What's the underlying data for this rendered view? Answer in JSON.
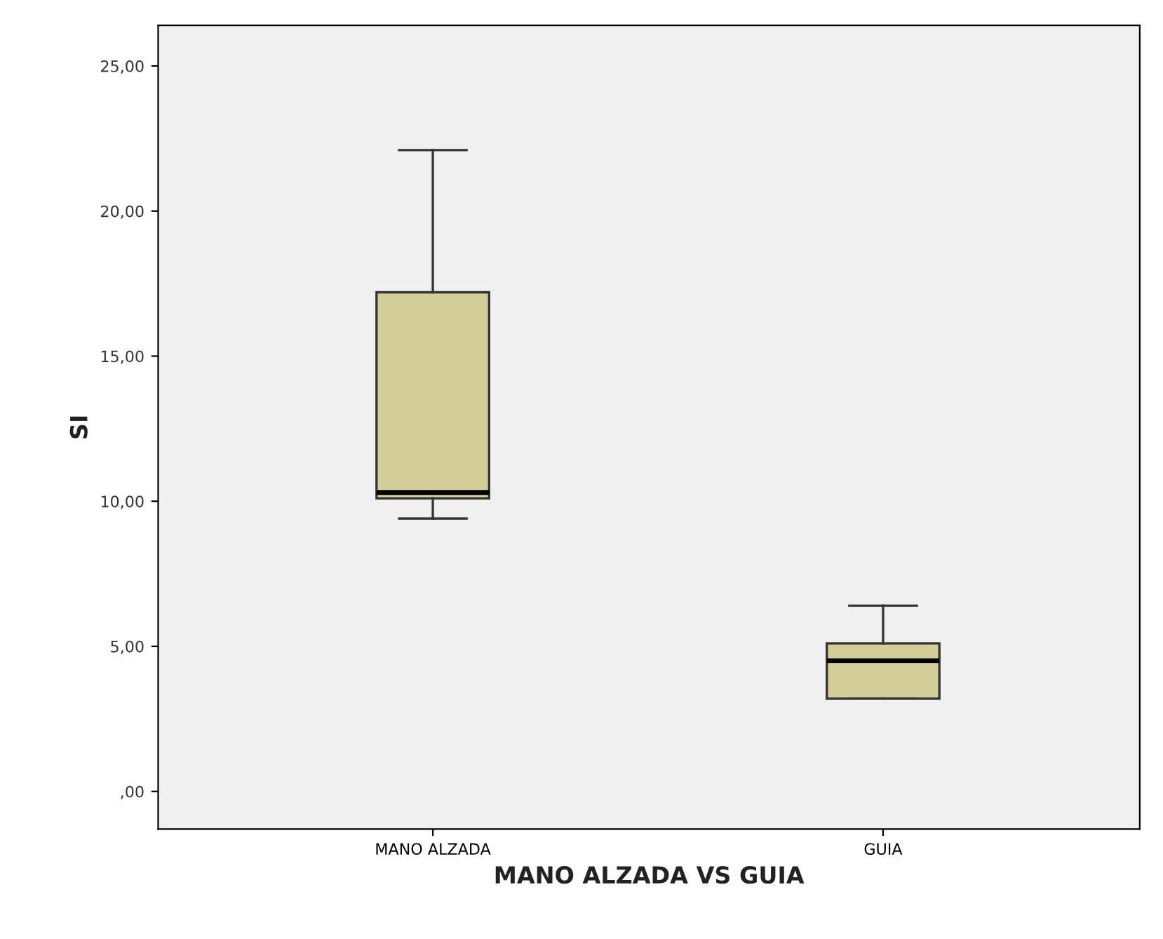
{
  "chart_data": {
    "type": "box",
    "xlabel": "MANO ALZADA VS GUIA",
    "ylabel": "SI",
    "categories": [
      "MANO ALZADA",
      "GUIA"
    ],
    "boxes": [
      {
        "low": 9.4,
        "q1": 10.1,
        "median": 10.3,
        "q3": 17.2,
        "high": 22.1
      },
      {
        "low": 3.2,
        "q1": 3.2,
        "median": 4.5,
        "q3": 5.1,
        "high": 6.4
      }
    ],
    "color": "#d3cd98",
    "ylim": [
      -1.3,
      26.4
    ],
    "yticks": [
      {
        "value": 0,
        "label": ",00"
      },
      {
        "value": 5,
        "label": "5,00"
      },
      {
        "value": 10,
        "label": "10,00"
      },
      {
        "value": 15,
        "label": "15,00"
      },
      {
        "value": 20,
        "label": "20,00"
      },
      {
        "value": 25,
        "label": "25,00"
      }
    ],
    "grid": false
  }
}
